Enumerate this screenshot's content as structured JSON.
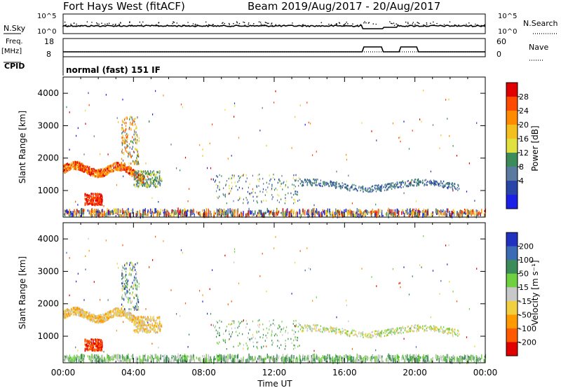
{
  "header": {
    "title": "Fort Hays West (fitACF)",
    "beam": "Beam 20",
    "daterange": "19/Aug/2017 - 20/Aug/2017"
  },
  "top_panels": {
    "nsky_label": "N.Sky",
    "nsky_ticks": [
      "10^5",
      "10^0"
    ],
    "nsearch_label": "N.Search",
    "nsearch_ticks": [
      "10^5",
      "10^0"
    ],
    "freq_label": "Freq.",
    "freq_unit": "[MHz]",
    "freq_ticks": [
      "18",
      "8"
    ],
    "nave_label": "Nave",
    "nave_ticks": [
      "60",
      "0"
    ],
    "cpid_label": "CPID",
    "cpid_text": "normal (fast) 151 IF"
  },
  "chart_data": [
    {
      "type": "heatmap",
      "name": "power",
      "ylabel": "Slant Range [km]",
      "yticks": [
        "4000",
        "3000",
        "2000",
        "1000"
      ],
      "ylim": [
        180,
        4500
      ],
      "colorbar_label": "Power [dB]",
      "colorbar_ticks": [
        "28",
        "24",
        "20",
        "16",
        "12",
        "8",
        "4"
      ],
      "colorbar_colors": [
        "#e00000",
        "#ff4a00",
        "#ff8c00",
        "#f4c020",
        "#e0e040",
        "#3c8c5a",
        "#5a7aa0",
        "#2846a8",
        "#1a20e6"
      ],
      "xticks": [
        "00:00",
        "04:00",
        "08:00",
        "12:00",
        "16:00",
        "20:00",
        "00:00"
      ],
      "features": [
        {
          "label": "near-range band",
          "t": [
            0,
            24
          ],
          "range": [
            200,
            380
          ]
        },
        {
          "label": "early arc",
          "t": [
            0,
            4.5
          ],
          "range": [
            1400,
            1900
          ]
        },
        {
          "label": "E-region blob",
          "t": [
            1.2,
            2.2
          ],
          "range": [
            550,
            900
          ]
        },
        {
          "label": "evening band",
          "t": [
            13.5,
            22.5
          ],
          "range": [
            1100,
            1500
          ]
        }
      ]
    },
    {
      "type": "heatmap",
      "name": "velocity",
      "ylabel": "Slant Range [km]",
      "yticks": [
        "4000",
        "3000",
        "2000",
        "1000"
      ],
      "ylim": [
        180,
        4500
      ],
      "colorbar_label": "Velocity [m s⁻¹]",
      "colorbar_ticks": [
        "200",
        "100",
        "50",
        "15",
        "-15",
        "-50",
        "-100",
        "-200"
      ],
      "colorbar_colors": [
        "#2030c0",
        "#3c6ab4",
        "#3c8c5a",
        "#70d040",
        "#c8c8c8",
        "#f0d040",
        "#ff9a00",
        "#ff5a00",
        "#e00000"
      ],
      "xticks": [
        "00:00",
        "04:00",
        "08:00",
        "12:00",
        "16:00",
        "20:00",
        "00:00"
      ],
      "xlabel": "Time UT"
    }
  ]
}
